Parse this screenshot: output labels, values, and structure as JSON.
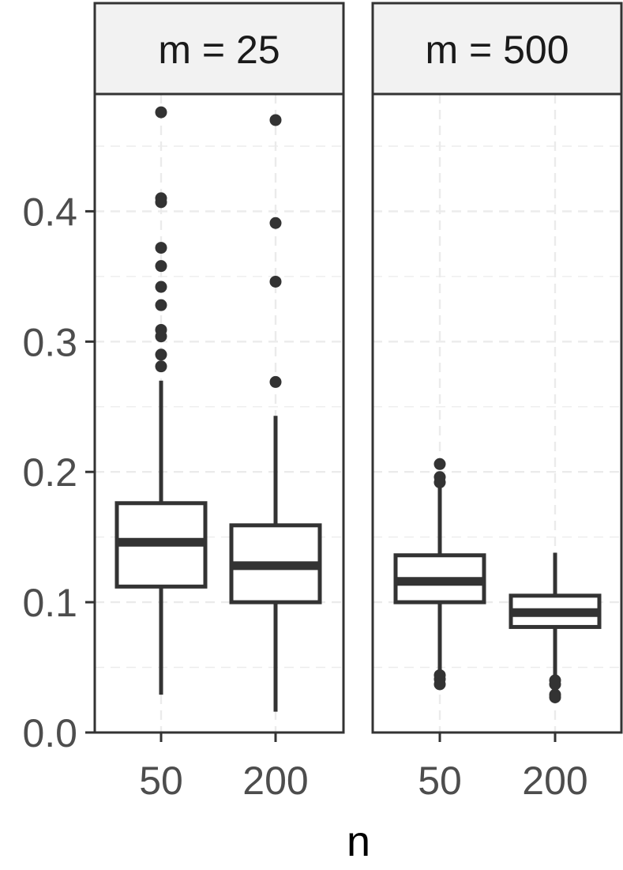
{
  "chart_data": {
    "type": "boxplot",
    "xlabel": "n",
    "ylabel": "",
    "ylim": [
      0.0,
      0.49
    ],
    "yticks": [
      0.0,
      0.1,
      0.2,
      0.3,
      0.4
    ],
    "ytick_labels": [
      "0.0",
      "0.1",
      "0.2",
      "0.3",
      "0.4"
    ],
    "categories": [
      "50",
      "200"
    ],
    "grid": true,
    "colors": {
      "box": "#333333",
      "strip_bg": "#f2f2f2",
      "grid": "#ebebeb",
      "frame": "#333333"
    },
    "panels": [
      {
        "label": "m = 25",
        "boxes": [
          {
            "category": "50",
            "whisker_low": 0.029,
            "q1": 0.112,
            "median": 0.146,
            "q3": 0.176,
            "whisker_high": 0.27,
            "outliers": [
              0.476,
              0.41,
              0.407,
              0.372,
              0.358,
              0.342,
              0.328,
              0.309,
              0.304,
              0.29,
              0.281
            ]
          },
          {
            "category": "200",
            "whisker_low": 0.016,
            "q1": 0.1,
            "median": 0.128,
            "q3": 0.159,
            "whisker_high": 0.243,
            "outliers": [
              0.47,
              0.391,
              0.346,
              0.269
            ]
          }
        ]
      },
      {
        "label": "m = 500",
        "boxes": [
          {
            "category": "50",
            "whisker_low": 0.046,
            "q1": 0.1,
            "median": 0.116,
            "q3": 0.136,
            "whisker_high": 0.19,
            "outliers": [
              0.206,
              0.196,
              0.192,
              0.044,
              0.041,
              0.037
            ]
          },
          {
            "category": "200",
            "whisker_low": 0.043,
            "q1": 0.081,
            "median": 0.092,
            "q3": 0.105,
            "whisker_high": 0.138,
            "outliers": [
              0.04,
              0.037,
              0.029,
              0.027
            ]
          }
        ]
      }
    ]
  }
}
